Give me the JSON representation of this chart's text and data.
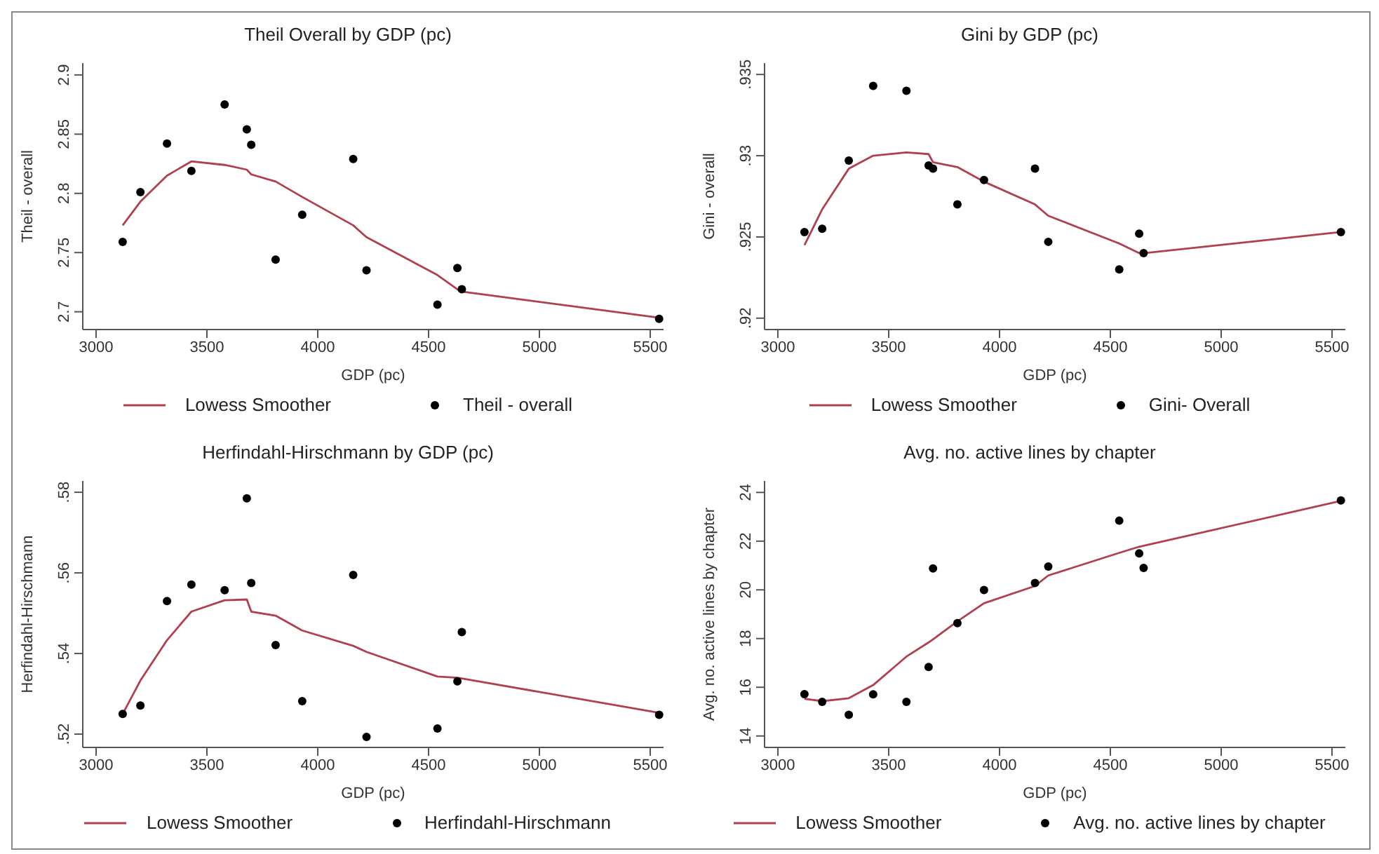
{
  "chart_data": [
    {
      "type": "scatter",
      "title": "Theil Overall by GDP (pc)",
      "xlabel": "GDP (pc)",
      "ylabel": "Theil - overall",
      "legend": "bottom",
      "x": [
        3120,
        3200,
        3320,
        3430,
        3580,
        3680,
        3700,
        3810,
        3930,
        4160,
        4220,
        4540,
        4630,
        4650,
        5540
      ],
      "xlim": [
        2940,
        5560
      ],
      "xticks": [
        3000,
        3500,
        4000,
        4500,
        5000,
        5500
      ],
      "ylim": [
        2.685,
        2.91
      ],
      "yticks": [
        2.7,
        2.75,
        2.8,
        2.85,
        2.9
      ],
      "series": [
        {
          "name": "Lowess Smoother",
          "type": "line",
          "marker": "none",
          "color": "#b0404e",
          "values": [
            2.773,
            2.793,
            2.815,
            2.827,
            2.824,
            2.82,
            2.816,
            2.81,
            2.797,
            2.773,
            2.763,
            2.731,
            2.719,
            2.717,
            2.695
          ]
        },
        {
          "name": "Theil - overall",
          "marker": "circle",
          "color": "#000000",
          "values": [
            2.759,
            2.801,
            2.842,
            2.819,
            2.875,
            2.854,
            2.841,
            2.744,
            2.782,
            2.829,
            2.735,
            2.706,
            2.737,
            2.719,
            2.694
          ]
        }
      ]
    },
    {
      "type": "scatter",
      "title": "Gini by GDP (pc)",
      "xlabel": "GDP (pc)",
      "ylabel": "Gini - overall",
      "legend": "bottom",
      "x": [
        3120,
        3200,
        3320,
        3430,
        3580,
        3680,
        3700,
        3810,
        3930,
        4160,
        4220,
        4540,
        4630,
        4650,
        5540
      ],
      "xlim": [
        2940,
        5560
      ],
      "xticks": [
        3000,
        3500,
        4000,
        4500,
        5000,
        5500
      ],
      "ylim": [
        0.9193,
        0.9357
      ],
      "yticks": [
        {
          "value": 0.92,
          "label": ".92"
        },
        {
          "value": 0.925,
          "label": ".925"
        },
        {
          "value": 0.93,
          "label": ".93"
        },
        {
          "value": 0.935,
          "label": ".935"
        }
      ],
      "series": [
        {
          "name": "Lowess Smoother",
          "type": "line",
          "marker": "none",
          "color": "#b0404e",
          "values": [
            0.9245,
            0.9267,
            0.9292,
            0.93,
            0.9302,
            0.9301,
            0.9296,
            0.9293,
            0.9284,
            0.927,
            0.9263,
            0.9246,
            0.924,
            0.924,
            0.9253
          ]
        },
        {
          "name": "Gini- Overall",
          "marker": "circle",
          "color": "#000000",
          "values": [
            0.9253,
            0.9255,
            0.9297,
            0.9343,
            0.934,
            0.9294,
            0.9292,
            0.927,
            0.9285,
            0.9292,
            0.9247,
            0.923,
            0.9252,
            0.924,
            0.9253
          ]
        }
      ]
    },
    {
      "type": "scatter",
      "title": "Herfindahl-Hirschmann by GDP (pc)",
      "xlabel": "GDP (pc)",
      "ylabel": "Herfindahl-Hirschmann",
      "legend": "bottom",
      "x": [
        3120,
        3200,
        3320,
        3430,
        3580,
        3680,
        3700,
        3810,
        3930,
        4160,
        4220,
        4540,
        4630,
        4650,
        5540
      ],
      "xlim": [
        2940,
        5560
      ],
      "xticks": [
        3000,
        3500,
        4000,
        4500,
        5000,
        5500
      ],
      "ylim": [
        0.5167,
        0.5828
      ],
      "yticks": [
        {
          "value": 0.52,
          "label": ".52"
        },
        {
          "value": 0.54,
          "label": ".54"
        },
        {
          "value": 0.56,
          "label": ".56"
        },
        {
          "value": 0.58,
          "label": ".58"
        }
      ],
      "series": [
        {
          "name": "Lowess Smoother",
          "type": "line",
          "marker": "none",
          "color": "#b0404e",
          "values": [
            0.525,
            0.5333,
            0.5433,
            0.5504,
            0.5532,
            0.5534,
            0.5504,
            0.5494,
            0.5457,
            0.5419,
            0.5404,
            0.5343,
            0.534,
            0.5338,
            0.5253
          ]
        },
        {
          "name": "Herfindahl-Hirschmann",
          "marker": "circle",
          "color": "#000000",
          "values": [
            0.525,
            0.5271,
            0.553,
            0.5571,
            0.5557,
            0.5785,
            0.5575,
            0.5421,
            0.5282,
            0.5595,
            0.5193,
            0.5214,
            0.5331,
            0.5453,
            0.5248
          ]
        }
      ]
    },
    {
      "type": "scatter",
      "title": "Avg. no. active lines by chapter",
      "xlabel": "GDP (pc)",
      "ylabel": "Avg. no. active lines by chapter",
      "legend": "bottom",
      "x": [
        3120,
        3200,
        3320,
        3430,
        3580,
        3680,
        3700,
        3810,
        3930,
        4160,
        4220,
        4540,
        4630,
        4650,
        5540
      ],
      "xlim": [
        2940,
        5560
      ],
      "xticks": [
        3000,
        3500,
        4000,
        4500,
        5000,
        5500
      ],
      "ylim": [
        13.53,
        24.47
      ],
      "yticks": [
        14,
        16,
        18,
        20,
        22,
        24
      ],
      "series": [
        {
          "name": "Lowess Smoother",
          "type": "line",
          "marker": "none",
          "color": "#b0404e",
          "values": [
            15.53,
            15.43,
            15.55,
            16.09,
            17.26,
            17.84,
            17.97,
            18.71,
            19.45,
            20.16,
            20.59,
            21.52,
            21.77,
            21.81,
            23.65
          ]
        },
        {
          "name": "Avg. no. active lines by chapter",
          "marker": "circle",
          "color": "#000000",
          "values": [
            15.72,
            15.4,
            14.87,
            15.71,
            15.4,
            16.83,
            20.88,
            18.63,
            19.99,
            20.28,
            20.96,
            22.84,
            21.5,
            20.9,
            23.67
          ]
        }
      ]
    }
  ]
}
